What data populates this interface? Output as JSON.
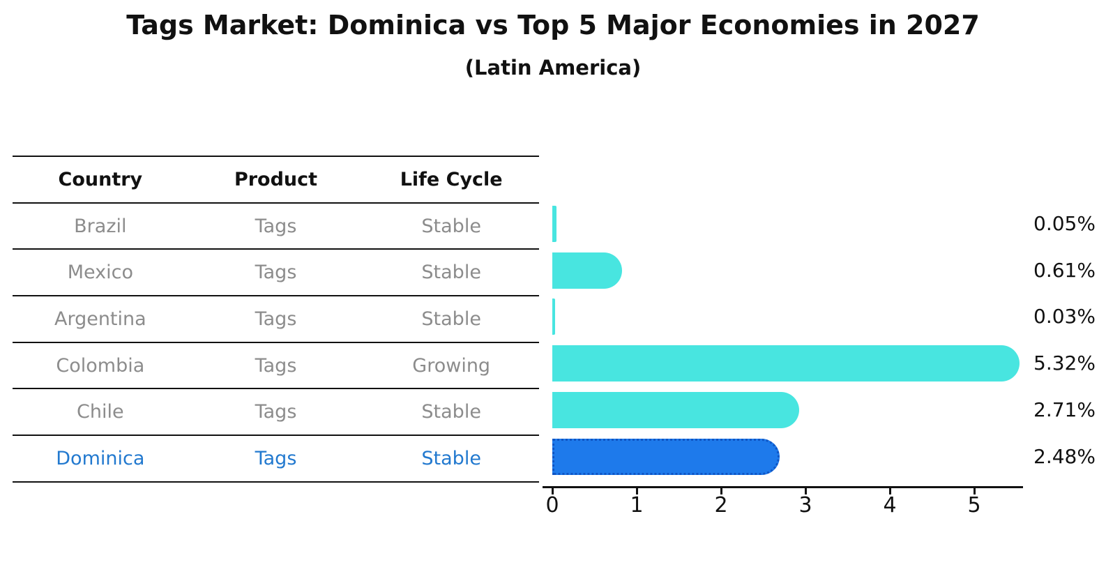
{
  "header": {
    "title": "Tags Market: Dominica vs Top 5 Major Economies in 2027",
    "subtitle": "(Latin America)"
  },
  "table": {
    "headers": [
      "Country",
      "Product",
      "Life Cycle"
    ],
    "rows": [
      {
        "country": "Brazil",
        "product": "Tags",
        "life_cycle": "Stable",
        "highlight": false
      },
      {
        "country": "Mexico",
        "product": "Tags",
        "life_cycle": "Stable",
        "highlight": false
      },
      {
        "country": "Argentina",
        "product": "Tags",
        "life_cycle": "Stable",
        "highlight": false
      },
      {
        "country": "Colombia",
        "product": "Tags",
        "life_cycle": "Growing",
        "highlight": false
      },
      {
        "country": "Chile",
        "product": "Tags",
        "life_cycle": "Stable",
        "highlight": false
      },
      {
        "country": "Dominica",
        "product": "Tags",
        "life_cycle": "Stable",
        "highlight": true
      }
    ]
  },
  "chart_data": {
    "type": "bar",
    "orientation": "horizontal",
    "title": "Tags Market: Dominica vs Top 5 Major Economies in 2027",
    "subtitle": "(Latin America)",
    "categories": [
      "Brazil",
      "Mexico",
      "Argentina",
      "Colombia",
      "Chile",
      "Dominica"
    ],
    "values": [
      0.05,
      0.61,
      0.03,
      5.32,
      2.71,
      2.48
    ],
    "value_labels": [
      "0.05%",
      "0.61%",
      "0.03%",
      "5.32%",
      "2.71%",
      "2.48%"
    ],
    "highlight_category": "Dominica",
    "xticks": [
      0,
      1,
      2,
      3,
      4,
      5
    ],
    "xlim": [
      0,
      5.58
    ],
    "grid": false,
    "legend": "none",
    "colors": {
      "bar_default": "#48e5e0",
      "bar_highlight": "#1e7aeb",
      "bar_highlight_border": "#0f55c4",
      "highlight_text": "#2279cf",
      "row_text": "#8c8c8c",
      "axis_text": "#111111"
    }
  }
}
